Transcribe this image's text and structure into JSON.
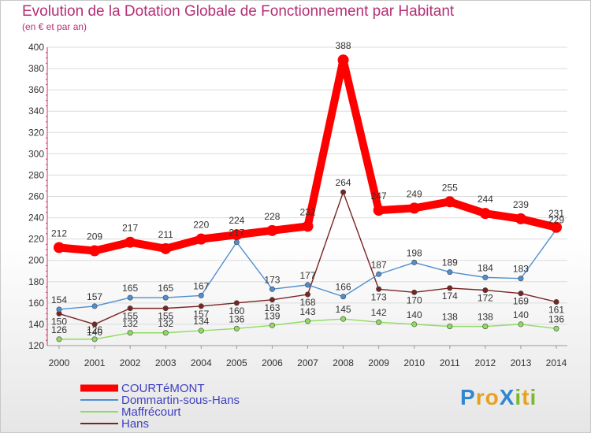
{
  "chart_data": {
    "type": "line",
    "title": "Evolution de la Dotation Globale de Fonctionnement par Habitant",
    "subtitle": "(en € et par an)",
    "xlabel": "",
    "ylabel": "",
    "x": [
      "2000",
      "2001",
      "2002",
      "2003",
      "2004",
      "2005",
      "2006",
      "2007",
      "2008",
      "2009",
      "2010",
      "2011",
      "2012",
      "2013",
      "2014"
    ],
    "ylim": [
      120,
      400
    ],
    "yticks": [
      "120",
      "140",
      "160",
      "180",
      "200",
      "220",
      "240",
      "260",
      "280",
      "300",
      "320",
      "340",
      "360",
      "380",
      "400"
    ],
    "legend_position": "bottom-left",
    "series": [
      {
        "name": "COURTéMONT",
        "color": "#ff0000",
        "values": [
          212,
          209,
          217,
          211,
          220,
          224,
          228,
          232,
          388,
          247,
          249,
          255,
          244,
          239,
          231
        ]
      },
      {
        "name": "Dommartin-sous-Hans",
        "color": "#4f8fcf",
        "values": [
          154,
          157,
          165,
          165,
          167,
          217,
          173,
          177,
          166,
          187,
          198,
          189,
          184,
          183,
          229
        ]
      },
      {
        "name": "Maffrécourt",
        "color": "#90dc60",
        "values": [
          126,
          126,
          132,
          132,
          134,
          136,
          139,
          143,
          145,
          142,
          140,
          138,
          138,
          140,
          136
        ]
      },
      {
        "name": "Hans",
        "color": "#7a2323",
        "values": [
          150,
          140,
          155,
          155,
          157,
          160,
          163,
          168,
          264,
          173,
          170,
          174,
          172,
          169,
          161
        ]
      }
    ]
  },
  "logo": {
    "text": "ProXiti",
    "letters": [
      "P",
      "r",
      "o",
      "X",
      "i",
      "t",
      "i"
    ]
  }
}
